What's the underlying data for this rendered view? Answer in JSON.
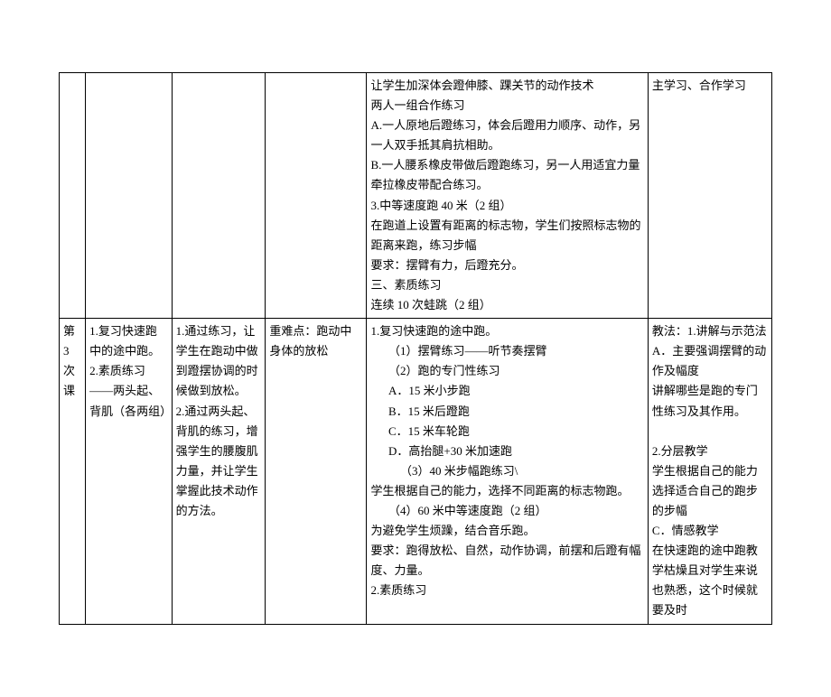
{
  "table": {
    "row1": {
      "col5_lines": [
        "让学生加深体会蹬伸膝、踝关节的动作技术",
        "两人一组合作练习",
        "A.一人原地后蹬练习，体会后蹬用力顺序、动作，另一人双手抵其肩抗相助。",
        "B.一人腰系橡皮带做后蹬跑练习，另一人用适宜力量牵拉橡皮带配合练习。",
        "3.中等速度跑 40 米（2 组）",
        "在跑道上设置有距离的标志物，学生们按照标志物的距离来跑，练习步幅",
        "要求：摆臂有力，后蹬充分。",
        "三、素质练习",
        "连续 10 次蛙跳（2 组）"
      ],
      "col6_lines": [
        "主学习、合作学习"
      ]
    },
    "row2": {
      "col1": "第 3 次 课",
      "col2_lines": [
        "1.复习快速跑中的途中跑。",
        "2.素质练习——两头起、背肌（各两组）"
      ],
      "col3_lines": [
        "1.通过练习，让学生在跑动中做到蹬摆协调的时候做到放松。",
        "2.通过两头起、背肌的练习，增强学生的腰腹肌力量，并让学生掌握此技术动作的方法。"
      ],
      "col4_lines": [
        "重难点：跑动中身体的放松"
      ],
      "col5_lines": [
        {
          "t": "1.复习快速跑的途中跑。",
          "cls": ""
        },
        {
          "t": "（1）摆臂练习——听节奏摆臂",
          "cls": "ind1"
        },
        {
          "t": "（2）跑的专门性练习",
          "cls": "ind1"
        },
        {
          "t": "A．15 米小步跑",
          "cls": "ind1"
        },
        {
          "t": "B．15 米后蹬跑",
          "cls": "ind1"
        },
        {
          "t": "C．15 米车轮跑",
          "cls": "ind1"
        },
        {
          "t": "D．高抬腿+30 米加速跑",
          "cls": "ind1"
        },
        {
          "t": "（3）40 米步幅跑练习\\",
          "cls": "ind2"
        },
        {
          "t": "学生根据自己的能力，选择不同距离的标志物跑。",
          "cls": ""
        },
        {
          "t": "（4）60 米中等速度跑（2 组）",
          "cls": "ind1"
        },
        {
          "t": "为避免学生烦躁，结合音乐跑。",
          "cls": ""
        },
        {
          "t": "要求：跑得放松、自然，动作协调，前摆和后蹬有幅度、力量。",
          "cls": ""
        },
        {
          "t": "2.素质练习",
          "cls": ""
        }
      ],
      "col6_lines": [
        "教法：1.讲解与示范法",
        "A．主要强调摆臂的动作及幅度",
        "讲解哪些是跑的专门性练习及其作用。",
        " ",
        "2.分层教学",
        "学生根据自己的能力选择适合自己的跑步的步幅",
        "C．情感教学",
        "在快速跑的途中跑教学枯燥且对学生来说也熟悉，这个时候就要及时"
      ]
    }
  }
}
